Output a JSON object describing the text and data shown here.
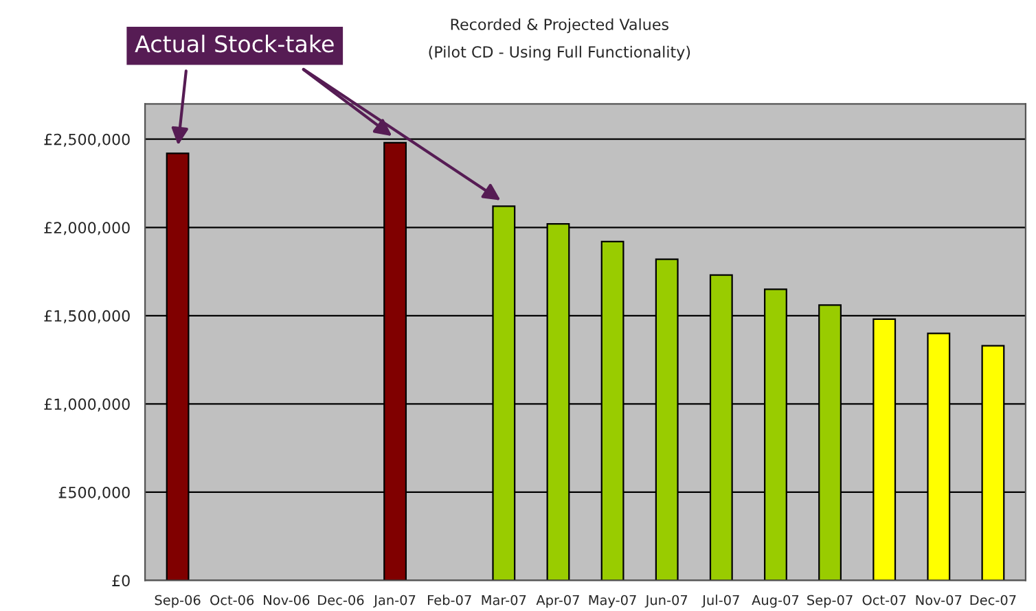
{
  "chart_data": {
    "type": "bar",
    "title": "Recorded & Projected Values",
    "subtitle": "(Pilot CD - Using Full Functionality)",
    "annotations": [
      "Actual Stock-take"
    ],
    "categories": [
      "Sep-06",
      "Oct-06",
      "Nov-06",
      "Dec-06",
      "Jan-07",
      "Feb-07",
      "Mar-07",
      "Apr-07",
      "May-07",
      "Jun-07",
      "Jul-07",
      "Aug-07",
      "Sep-07",
      "Oct-07",
      "Nov-07",
      "Dec-07"
    ],
    "values": [
      2420000,
      null,
      null,
      null,
      2480000,
      null,
      2120000,
      2020000,
      1920000,
      1820000,
      1730000,
      1650000,
      1560000,
      1480000,
      1400000,
      1330000
    ],
    "colors": [
      "#800000",
      "#800000",
      "#800000",
      "#800000",
      "#800000",
      "#800000",
      "#99cc00",
      "#99cc00",
      "#99cc00",
      "#99cc00",
      "#99cc00",
      "#99cc00",
      "#99cc00",
      "#ffff00",
      "#ffff00",
      "#ffff00"
    ],
    "ylim": [
      0,
      2700000
    ],
    "yticks": [
      {
        "value": 0,
        "label": "£0"
      },
      {
        "value": 500000,
        "label": "£500,000"
      },
      {
        "value": 1000000,
        "label": "£1,000,000"
      },
      {
        "value": 1500000,
        "label": "£1,500,000"
      },
      {
        "value": 2000000,
        "label": "£2,000,000"
      },
      {
        "value": 2500000,
        "label": "£2,500,000"
      }
    ],
    "grid": "y",
    "legend": false
  }
}
